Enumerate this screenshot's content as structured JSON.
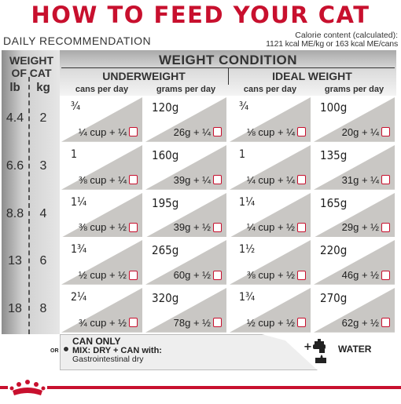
{
  "title": "HOW TO FEED YOUR CAT",
  "daily_recommendation": "DAILY RECOMMENDATION",
  "calorie": {
    "line1": "Calorie content (calculated):",
    "line2": "1121 kcal ME/kg or 163 kcal ME/cans"
  },
  "weight_of_cat": {
    "line1": "WEIGHT",
    "line2": "OF CAT",
    "lb": "lb",
    "kg": "kg"
  },
  "weight_condition": "WEIGHT CONDITION",
  "underweight": "UNDERWEIGHT",
  "ideal_weight": "IDEAL WEIGHT",
  "cans_per_day": "cans per day",
  "grams_per_day": "grams per day",
  "rows": [
    {
      "lb": "4.4",
      "kg": "2",
      "uw_cans": "3/4",
      "uw_cans_sub": "1/4 cup + 1/4",
      "uw_grams": "120g",
      "uw_grams_sub": "26g + 1/4",
      "iw_cans": "3/4",
      "iw_cans_sub": "1/8 cup + 1/4",
      "iw_grams": "100g",
      "iw_grams_sub": "20g + 1/4"
    },
    {
      "lb": "6.6",
      "kg": "3",
      "uw_cans": "1",
      "uw_cans_sub": "3/8 cup + 1/4",
      "uw_grams": "160g",
      "uw_grams_sub": "39g + 1/4",
      "iw_cans": "1",
      "iw_cans_sub": "1/4 cup + 1/4",
      "iw_grams": "135g",
      "iw_grams_sub": "31g + 1/4"
    },
    {
      "lb": "8.8",
      "kg": "4",
      "uw_cans": "1 1/4",
      "uw_cans_sub": "3/8 cup + 1/2",
      "uw_grams": "195g",
      "uw_grams_sub": "39g + 1/2",
      "iw_cans": "1 1/4",
      "iw_cans_sub": "1/4 cup + 1/2",
      "iw_grams": "165g",
      "iw_grams_sub": "29g + 1/2"
    },
    {
      "lb": "13",
      "kg": "6",
      "uw_cans": "1 3/4",
      "uw_cans_sub": "1/2 cup + 1/2",
      "uw_grams": "265g",
      "uw_grams_sub": "60g + 1/2",
      "iw_cans": "1 1/2",
      "iw_cans_sub": "3/8 cup + 1/2",
      "iw_grams": "220g",
      "iw_grams_sub": "46g + 1/2"
    },
    {
      "lb": "18",
      "kg": "8",
      "uw_cans": "2 1/4",
      "uw_cans_sub": "3/4 cup + 1/2",
      "uw_grams": "320g",
      "uw_grams_sub": "78g + 1/2",
      "iw_cans": "1 3/4",
      "iw_cans_sub": "1/2 cup + 1/2",
      "iw_grams": "270g",
      "iw_grams_sub": "62g + 1/2"
    }
  ],
  "can_only": "CAN ONLY",
  "or": "OR",
  "mix_line1": "MIX: DRY + CAN with:",
  "mix_line2": "Gastrointestinal dry",
  "water": "WATER",
  "plus": "+",
  "colors": {
    "red": "#c8102e",
    "gray": "#9a9a9a"
  },
  "icons": {
    "crown": "royal-canin-crown-icon",
    "can": "can-icon",
    "faucet": "faucet-icon"
  }
}
